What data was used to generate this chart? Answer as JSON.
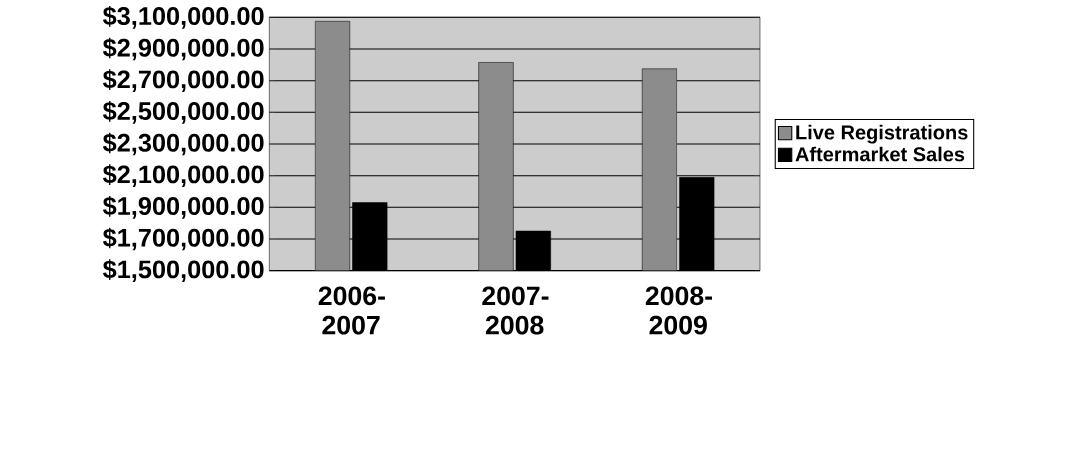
{
  "chart_data": {
    "type": "bar",
    "categories": [
      "2006-2007",
      "2007-2008",
      "2008-2009"
    ],
    "series": [
      {
        "name": "Live Registrations",
        "color": "#8c8c8c",
        "values": [
          3075000,
          2815000,
          2775000
        ]
      },
      {
        "name": "Aftermarket Sales",
        "color": "#000000",
        "values": [
          1930000,
          1750000,
          2090000
        ]
      }
    ],
    "ylim": [
      1500000,
      3100000
    ],
    "yticks": [
      {
        "value": 1500000,
        "label": "$1,500,000.00"
      },
      {
        "value": 1700000,
        "label": "$1,700,000.00"
      },
      {
        "value": 1900000,
        "label": "$1,900,000.00"
      },
      {
        "value": 2100000,
        "label": "$2,100,000.00"
      },
      {
        "value": 2300000,
        "label": "$2,300,000.00"
      },
      {
        "value": 2500000,
        "label": "$2,500,000.00"
      },
      {
        "value": 2700000,
        "label": "$2,700,000.00"
      },
      {
        "value": 2900000,
        "label": "$2,900,000.00"
      },
      {
        "value": 3100000,
        "label": "$3,100,000.00"
      }
    ],
    "grid": "y",
    "legend": "right"
  }
}
